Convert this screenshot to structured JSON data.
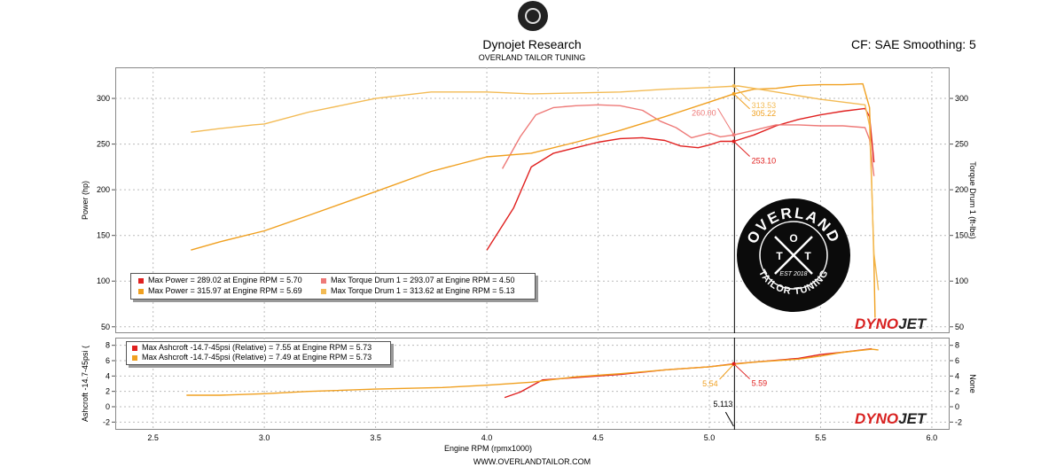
{
  "header": {
    "title": "Dynojet Research",
    "subtitle": "OVERLAND TAILOR TUNING",
    "correction": "CF: SAE Smoothing: 5",
    "website": "WWW.OVERLANDTAILOR.COM"
  },
  "branding": {
    "dynojet_part1": "DYNO",
    "dynojet_part2": "JET",
    "seal_text": "OVERLAND TAILOR TUNING",
    "seal_est": "EST 2018",
    "seal_letters": "O T T"
  },
  "colors": {
    "run1": "#e0201f",
    "run1_torque": "#ee7a78",
    "run2": "#f0a020",
    "run2_torque": "#f3bb55",
    "cursor": "#000000",
    "grid": "#bbbbbb"
  },
  "chart_data": [
    {
      "type": "line",
      "title": "",
      "xlabel": "",
      "ylabel": "Power (hp)",
      "y2label": "Torque Drum 1 (ft-lbs)",
      "xlim": [
        2.33,
        6.08
      ],
      "ylim": [
        43,
        334
      ],
      "y2lim": [
        43,
        334
      ],
      "yticks": [
        50,
        100,
        150,
        200,
        250,
        300
      ],
      "y2ticks": [
        50,
        100,
        150,
        200,
        250,
        300
      ],
      "xticks": [
        2.5,
        3.0,
        3.5,
        4.0,
        4.5,
        5.0,
        5.5,
        6.0
      ],
      "grid": true,
      "cursor_x": 5.113,
      "legend": {
        "placement": "bottom-left",
        "entries": [
          {
            "text": "Max Power = 289.02 at Engine RPM = 5.70",
            "color": "#e0201f"
          },
          {
            "text": "Max Torque Drum 1 = 293.07 at Engine RPM = 4.50",
            "color": "#ee7a78"
          },
          {
            "text": "Max Power = 315.97 at Engine RPM = 5.69",
            "color": "#f0a020"
          },
          {
            "text": "Max Torque Drum 1 = 313.62 at Engine RPM = 5.13",
            "color": "#f3bb55"
          }
        ]
      },
      "series": [
        {
          "name": "Max Power = 289.02 at Engine RPM = 5.70",
          "color": "#e0201f",
          "axis": "left",
          "points": [
            [
              4.0,
              134
            ],
            [
              4.12,
              180
            ],
            [
              4.2,
              225
            ],
            [
              4.3,
              240
            ],
            [
              4.4,
              246
            ],
            [
              4.5,
              252
            ],
            [
              4.6,
              256
            ],
            [
              4.7,
              257
            ],
            [
              4.8,
              254
            ],
            [
              4.87,
              248
            ],
            [
              4.95,
              246
            ],
            [
              5.0,
              249
            ],
            [
              5.05,
              253
            ],
            [
              5.11,
              253
            ],
            [
              5.2,
              260
            ],
            [
              5.3,
              270
            ],
            [
              5.4,
              277
            ],
            [
              5.5,
              282
            ],
            [
              5.6,
              286
            ],
            [
              5.7,
              289
            ],
            [
              5.72,
              280
            ],
            [
              5.74,
              230
            ]
          ]
        },
        {
          "name": "Max Torque Drum 1 = 293.07 at Engine RPM = 4.50",
          "color": "#ee7a78",
          "axis": "right",
          "points": [
            [
              4.07,
              223
            ],
            [
              4.15,
              258
            ],
            [
              4.22,
              282
            ],
            [
              4.3,
              290
            ],
            [
              4.4,
              292
            ],
            [
              4.5,
              293
            ],
            [
              4.6,
              292
            ],
            [
              4.7,
              287
            ],
            [
              4.78,
              275
            ],
            [
              4.85,
              268
            ],
            [
              4.92,
              257
            ],
            [
              5.0,
              262
            ],
            [
              5.05,
              258
            ],
            [
              5.11,
              260
            ],
            [
              5.2,
              265
            ],
            [
              5.3,
              271
            ],
            [
              5.4,
              271
            ],
            [
              5.5,
              270
            ],
            [
              5.6,
              270
            ],
            [
              5.7,
              268
            ],
            [
              5.72,
              255
            ],
            [
              5.74,
              215
            ]
          ]
        },
        {
          "name": "Max Power = 315.97 at Engine RPM = 5.69",
          "color": "#f0a020",
          "axis": "left",
          "points": [
            [
              2.67,
              134
            ],
            [
              2.8,
              143
            ],
            [
              3.0,
              155
            ],
            [
              3.2,
              172
            ],
            [
              3.5,
              198
            ],
            [
              3.75,
              220
            ],
            [
              4.0,
              236
            ],
            [
              4.2,
              240
            ],
            [
              4.4,
              252
            ],
            [
              4.6,
              265
            ],
            [
              4.8,
              280
            ],
            [
              5.0,
              296
            ],
            [
              5.11,
              305
            ],
            [
              5.2,
              310
            ],
            [
              5.3,
              311
            ],
            [
              5.4,
              314
            ],
            [
              5.5,
              315
            ],
            [
              5.6,
              315
            ],
            [
              5.69,
              316
            ],
            [
              5.72,
              290
            ],
            [
              5.74,
              120
            ],
            [
              5.745,
              60
            ]
          ]
        },
        {
          "name": "Max Torque Drum 1 = 313.62 at Engine RPM = 5.13",
          "color": "#f3bb55",
          "axis": "right",
          "points": [
            [
              2.67,
              263
            ],
            [
              2.8,
              267
            ],
            [
              2.95,
              271
            ],
            [
              3.0,
              272
            ],
            [
              3.2,
              285
            ],
            [
              3.5,
              300
            ],
            [
              3.75,
              307
            ],
            [
              4.0,
              307
            ],
            [
              4.2,
              305
            ],
            [
              4.4,
              306
            ],
            [
              4.6,
              307
            ],
            [
              4.8,
              310
            ],
            [
              5.0,
              312
            ],
            [
              5.13,
              313.6
            ],
            [
              5.2,
              311
            ],
            [
              5.3,
              307
            ],
            [
              5.4,
              303
            ],
            [
              5.5,
              299
            ],
            [
              5.6,
              296
            ],
            [
              5.7,
              293
            ],
            [
              5.72,
              270
            ],
            [
              5.74,
              130
            ],
            [
              5.76,
              90
            ]
          ]
        }
      ],
      "annotations": [
        {
          "text": "260.00",
          "x": 5.11,
          "y": 260,
          "color": "#ee7a78",
          "position": "above-left"
        },
        {
          "text": "305.22",
          "x": 5.11,
          "y": 305,
          "color": "#f0a020",
          "position": "below-right"
        },
        {
          "text": "313.53",
          "x": 5.11,
          "y": 313.6,
          "color": "#f3bb55",
          "position": "below-right"
        },
        {
          "text": "253.10",
          "x": 5.11,
          "y": 253,
          "color": "#e0201f",
          "position": "below-right"
        }
      ]
    },
    {
      "type": "line",
      "title": "",
      "xlabel": "Engine RPM (rpmx1000)",
      "ylabel": "Ashcroft -14.7-45psi (",
      "y2label": "None",
      "xlim": [
        2.33,
        6.08
      ],
      "ylim": [
        -3,
        9
      ],
      "yticks": [
        -2,
        0,
        2,
        4,
        6,
        8
      ],
      "y2ticks": [
        -2,
        0,
        2,
        4,
        6,
        8
      ],
      "xticks": [
        2.5,
        3.0,
        3.5,
        4.0,
        4.5,
        5.0,
        5.5,
        6.0
      ],
      "xticklabels": [
        "2.5",
        "3.0",
        "3.5",
        "4.0",
        "4.5",
        "5.0",
        "5.5",
        "6.0"
      ],
      "grid": true,
      "cursor_x": 5.113,
      "cursor_label": "5.113",
      "legend": {
        "placement": "top-left",
        "entries": [
          {
            "text": "Max Ashcroft -14.7-45psi (Relative) = 7.55 at Engine RPM = 5.73",
            "color": "#e0201f"
          },
          {
            "text": "Max Ashcroft -14.7-45psi (Relative) = 7.49 at Engine RPM = 5.73",
            "color": "#f0a020"
          }
        ]
      },
      "series": [
        {
          "name": "Max Ashcroft -14.7-45psi (Relative) = 7.55 at Engine RPM = 5.73",
          "color": "#e0201f",
          "points": [
            [
              4.08,
              1.2
            ],
            [
              4.15,
              1.9
            ],
            [
              4.25,
              3.5
            ],
            [
              4.4,
              3.8
            ],
            [
              4.6,
              4.2
            ],
            [
              4.8,
              4.8
            ],
            [
              5.0,
              5.2
            ],
            [
              5.11,
              5.59
            ],
            [
              5.2,
              5.8
            ],
            [
              5.4,
              6.3
            ],
            [
              5.5,
              6.8
            ],
            [
              5.6,
              7.1
            ],
            [
              5.73,
              7.55
            ]
          ]
        },
        {
          "name": "Max Ashcroft -14.7-45psi (Relative) = 7.49 at Engine RPM = 5.73",
          "color": "#f0a020",
          "points": [
            [
              2.65,
              1.5
            ],
            [
              2.8,
              1.5
            ],
            [
              3.0,
              1.7
            ],
            [
              3.2,
              2.0
            ],
            [
              3.5,
              2.3
            ],
            [
              3.8,
              2.5
            ],
            [
              4.0,
              2.8
            ],
            [
              4.2,
              3.2
            ],
            [
              4.4,
              3.9
            ],
            [
              4.6,
              4.3
            ],
            [
              4.8,
              4.8
            ],
            [
              5.0,
              5.2
            ],
            [
              5.11,
              5.54
            ],
            [
              5.2,
              5.8
            ],
            [
              5.4,
              6.2
            ],
            [
              5.5,
              6.6
            ],
            [
              5.6,
              7.1
            ],
            [
              5.73,
              7.49
            ],
            [
              5.76,
              7.4
            ]
          ]
        }
      ],
      "annotations": [
        {
          "text": "5.54",
          "x": 5.11,
          "y": 5.54,
          "color": "#f0a020",
          "position": "below-left"
        },
        {
          "text": "5.59",
          "x": 5.11,
          "y": 5.59,
          "color": "#e0201f",
          "position": "below-right"
        }
      ]
    }
  ]
}
